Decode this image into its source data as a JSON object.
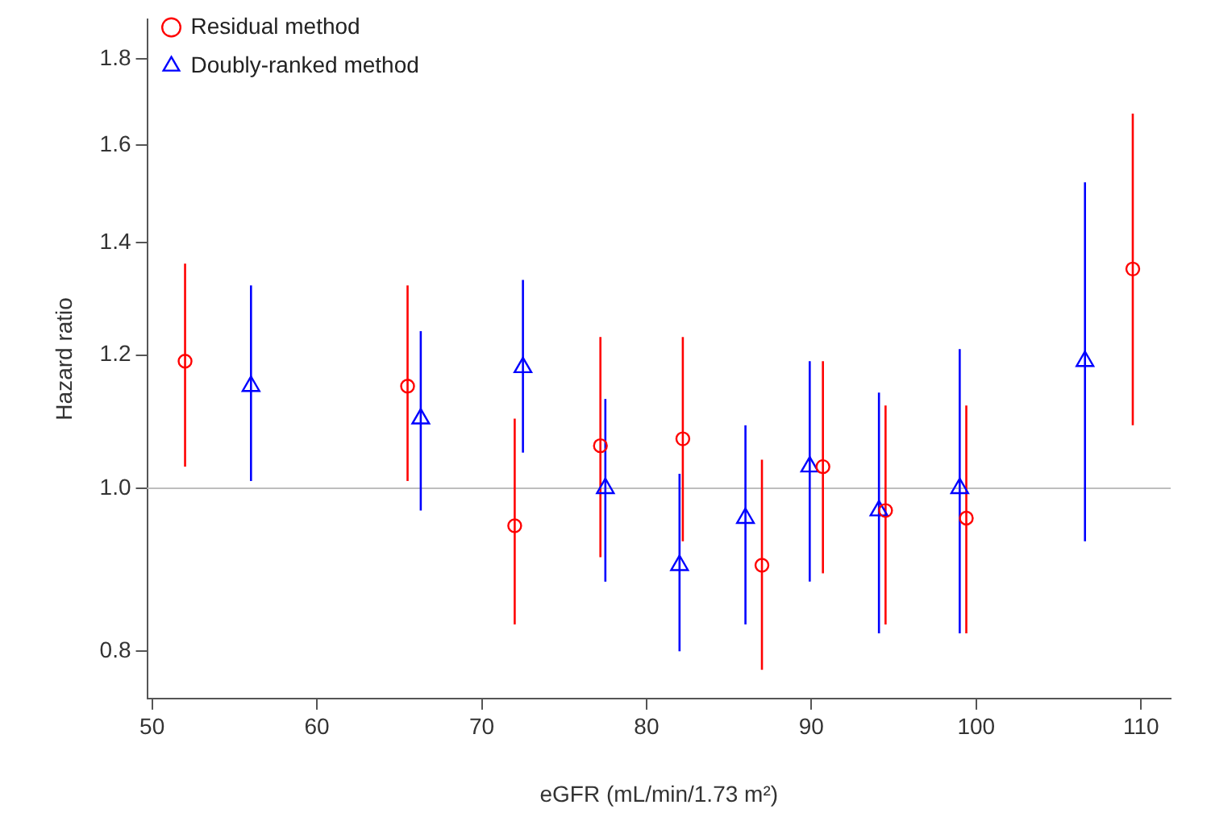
{
  "chart_data": {
    "type": "scatter",
    "xlabel": "eGFR (mL/min/1.73 m²)",
    "ylabel": "Hazard ratio",
    "log": "y",
    "xlim": [
      49.7,
      111.8
    ],
    "xticks": [
      50,
      60,
      70,
      80,
      90,
      100,
      110
    ],
    "ylim": [
      0.75,
      1.9
    ],
    "yticks": [
      {
        "value": 0.8,
        "label": "0.8"
      },
      {
        "value": 1,
        "label": "1.0"
      },
      {
        "value": 1.2,
        "label": "1.2"
      },
      {
        "value": 1.4,
        "label": "1.4"
      },
      {
        "value": 1.6,
        "label": "1.6"
      },
      {
        "value": 1.8,
        "label": "1.8"
      }
    ],
    "grid": false,
    "legend": "top left",
    "ref_lines": [
      {
        "axis": "y",
        "value": 1,
        "color": "#bebebe"
      }
    ],
    "series": [
      {
        "name": "Residual method",
        "color": "#ff0000",
        "marker": "circle",
        "x": [
          52,
          65.5,
          72,
          77.2,
          82.2,
          87,
          90.7,
          94.5,
          99.4,
          109.5
        ],
        "values": [
          1.19,
          1.15,
          0.95,
          1.06,
          1.07,
          0.9,
          1.03,
          0.97,
          0.96,
          1.35
        ],
        "errors": [
          [
            1.03,
            1.36
          ],
          [
            1.01,
            1.32
          ],
          [
            0.83,
            1.1
          ],
          [
            0.91,
            1.23
          ],
          [
            0.93,
            1.23
          ],
          [
            0.78,
            1.04
          ],
          [
            0.89,
            1.19
          ],
          [
            0.83,
            1.12
          ],
          [
            0.82,
            1.12
          ],
          [
            1.09,
            1.67
          ]
        ]
      },
      {
        "name": "Doubly-ranked method",
        "color": "#0000ff",
        "marker": "triangle",
        "x": [
          56,
          66.3,
          72.5,
          77.5,
          82,
          86,
          89.9,
          94.1,
          99,
          106.6
        ],
        "values": [
          1.15,
          1.1,
          1.18,
          1.0,
          0.9,
          0.96,
          1.03,
          0.97,
          1.0,
          1.19
        ],
        "errors": [
          [
            1.01,
            1.32
          ],
          [
            0.97,
            1.24
          ],
          [
            1.05,
            1.33
          ],
          [
            0.88,
            1.13
          ],
          [
            0.8,
            1.02
          ],
          [
            0.83,
            1.09
          ],
          [
            0.88,
            1.19
          ],
          [
            0.82,
            1.14
          ],
          [
            0.82,
            1.21
          ],
          [
            0.93,
            1.52
          ]
        ]
      }
    ]
  }
}
